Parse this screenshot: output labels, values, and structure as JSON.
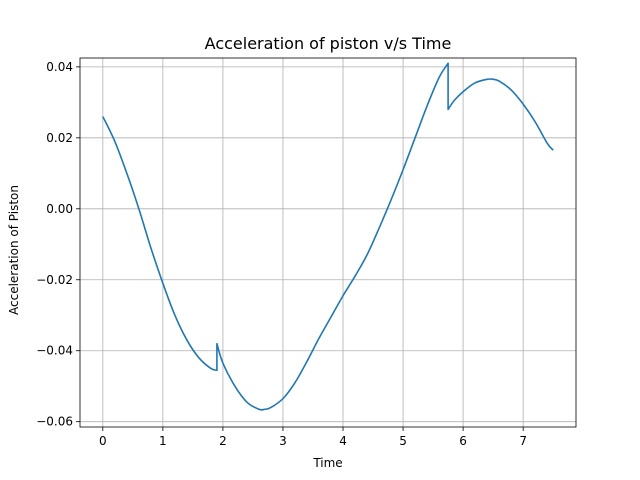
{
  "chart_data": {
    "type": "line",
    "title": "Acceleration of piston v/s Time",
    "xlabel": "Time",
    "ylabel": "Acceleration of Piston",
    "xlim": [
      -0.38,
      7.88
    ],
    "ylim": [
      -0.0615,
      0.0425
    ],
    "xticks": [
      0,
      1,
      2,
      3,
      4,
      5,
      6,
      7
    ],
    "xtick_labels": [
      "0",
      "1",
      "2",
      "3",
      "4",
      "5",
      "6",
      "7"
    ],
    "yticks": [
      -0.06,
      -0.04,
      -0.02,
      0.0,
      0.02,
      0.04
    ],
    "ytick_labels": [
      "−0.06",
      "−0.04",
      "−0.02",
      "0.00",
      "0.02",
      "0.04"
    ],
    "grid": true,
    "line_color": "#1f77b4",
    "series": [
      {
        "x": [
          0.0,
          0.2,
          0.4,
          0.6,
          0.8,
          1.0,
          1.2,
          1.4,
          1.6,
          1.8,
          1.9,
          1.9,
          2.0,
          2.2,
          2.4,
          2.6,
          2.7,
          2.8,
          3.0,
          3.2,
          3.4,
          3.6,
          3.8,
          4.0,
          4.2,
          4.4,
          4.6,
          4.8,
          5.0,
          5.2,
          5.4,
          5.6,
          5.75,
          5.75,
          5.85,
          6.0,
          6.2,
          6.4,
          6.5,
          6.6,
          6.8,
          7.0,
          7.2,
          7.4,
          7.5
        ],
        "y": [
          0.026,
          0.019,
          0.01,
          0.0,
          -0.011,
          -0.021,
          -0.03,
          -0.037,
          -0.042,
          -0.045,
          -0.0455,
          -0.038,
          -0.0435,
          -0.05,
          -0.0545,
          -0.0565,
          -0.0565,
          -0.056,
          -0.0535,
          -0.049,
          -0.043,
          -0.0365,
          -0.0305,
          -0.0245,
          -0.019,
          -0.013,
          -0.0055,
          0.0025,
          0.011,
          0.02,
          0.029,
          0.037,
          0.041,
          0.028,
          0.0305,
          0.033,
          0.0355,
          0.0365,
          0.0365,
          0.036,
          0.0335,
          0.0295,
          0.0245,
          0.0185,
          0.0165
        ]
      }
    ]
  }
}
